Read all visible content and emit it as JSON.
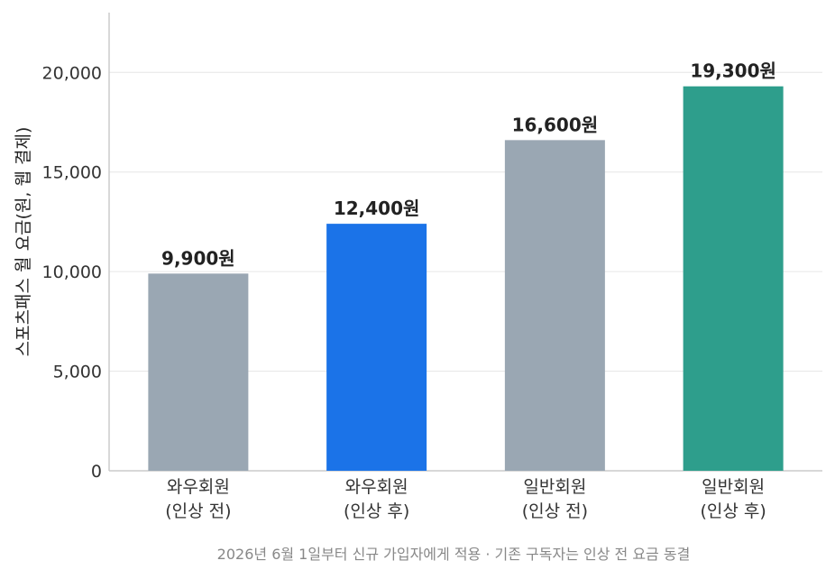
{
  "chart_data": {
    "type": "bar",
    "categories": [
      [
        "와우회원",
        "(인상 전)"
      ],
      [
        "와우회원",
        "(인상 후)"
      ],
      [
        "일반회원",
        "(인상 전)"
      ],
      [
        "일반회원",
        "(인상 후)"
      ]
    ],
    "values": [
      9900,
      12400,
      16600,
      19300
    ],
    "value_labels": [
      "9,900원",
      "12,400원",
      "16,600원",
      "19,300원"
    ],
    "bar_colors": [
      "#9aa7b3",
      "#1b73e8",
      "#9aa7b3",
      "#2e9e8c"
    ],
    "ylabel": "스포츠패스 월 요금(원, 웹 결제)",
    "yticks": [
      0,
      5000,
      10000,
      15000,
      20000
    ],
    "ytick_labels": [
      "0",
      "5,000",
      "10,000",
      "15,000",
      "20,000"
    ],
    "ylim": [
      0,
      23000
    ],
    "grid": true,
    "footnote": "2026년 6월 1일부터 신규 가입자에게 적용 · 기존 구독자는 인상 전 요금 동결"
  }
}
